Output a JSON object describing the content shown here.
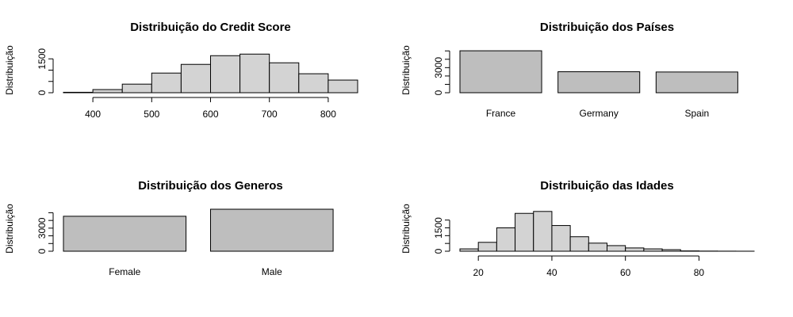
{
  "chart_data": [
    {
      "type": "histogram",
      "title": "Distribuição do Credit Score",
      "ylabel": "Distribuição",
      "color": "#d3d3d3",
      "bins": [
        350,
        400,
        450,
        500,
        550,
        600,
        650,
        700,
        750,
        800,
        850
      ],
      "values": [
        20,
        140,
        380,
        870,
        1255,
        1640,
        1710,
        1325,
        840,
        560
      ],
      "xlim": [
        350,
        850
      ],
      "xticks": [
        400,
        500,
        600,
        700,
        800
      ],
      "ylim": [
        0,
        2000
      ],
      "yticks": [
        0,
        1500
      ],
      "yminor_ticks": [
        500,
        1000
      ]
    },
    {
      "type": "bar",
      "title": "Distribuição dos Países",
      "ylabel": "Distribuição",
      "color": "#bebebe",
      "categories": [
        "France",
        "Germany",
        "Spain"
      ],
      "values": [
        5014,
        2509,
        2477
      ],
      "ylim": [
        0,
        5400
      ],
      "yticks": [
        0,
        3000
      ],
      "yminor_ticks": [
        1000,
        2000,
        4000,
        5000
      ]
    },
    {
      "type": "bar",
      "title": "Distribuição dos Generos",
      "ylabel": "Distribuição",
      "color": "#bebebe",
      "categories": [
        "Female",
        "Male"
      ],
      "values": [
        4543,
        5457
      ],
      "ylim": [
        0,
        5870
      ],
      "yticks": [
        0,
        3000
      ],
      "yminor_ticks": [
        1000,
        2000,
        4000,
        5000
      ]
    },
    {
      "type": "histogram",
      "title": "Distribuição das Idades",
      "ylabel": "Distribuição",
      "color": "#d3d3d3",
      "bins": [
        15,
        20,
        25,
        30,
        35,
        40,
        45,
        50,
        55,
        60,
        65,
        70,
        75,
        80,
        85,
        90,
        95
      ],
      "values": [
        150,
        570,
        1500,
        2430,
        2554,
        1650,
        930,
        520,
        360,
        210,
        150,
        100,
        20,
        10,
        5,
        2
      ],
      "xlim": [
        15,
        95
      ],
      "xticks": [
        20,
        40,
        60,
        80
      ],
      "ylim": [
        0,
        2900
      ],
      "yticks": [
        0,
        1500
      ],
      "yminor_ticks": [
        500,
        1000,
        2000
      ]
    }
  ]
}
